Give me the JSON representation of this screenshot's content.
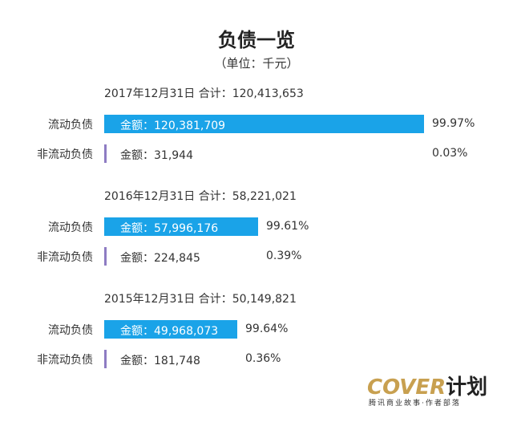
{
  "chart_data": {
    "type": "bar",
    "title": "负债一览",
    "subtitle": "（单位：千元）",
    "label_prefix": "金额：",
    "colors": {
      "current": "#1aa3e8",
      "noncurrent": "#8e7cc3"
    },
    "groups": [
      {
        "header": "2017年12月31日  合计：120,413,653",
        "rows": [
          {
            "name": "流动负债",
            "value": 120381709,
            "value_label": "120,381,709",
            "pct": 99.97,
            "pct_label": "99.97%"
          },
          {
            "name": "非流动负债",
            "value": 31944,
            "value_label": "31,944",
            "pct": 0.03,
            "pct_label": "0.03%"
          }
        ]
      },
      {
        "header": "2016年12月31日  合计：58,221,021",
        "rows": [
          {
            "name": "流动负债",
            "value": 57996176,
            "value_label": "57,996,176",
            "pct": 99.61,
            "pct_label": "99.61%"
          },
          {
            "name": "非流动负债",
            "value": 224845,
            "value_label": "224,845",
            "pct": 0.39,
            "pct_label": "0.39%"
          }
        ]
      },
      {
        "header": "2015年12月31日  合计：50,149,821",
        "rows": [
          {
            "name": "流动负债",
            "value": 49968073,
            "value_label": "49,968,073",
            "pct": 99.64,
            "pct_label": "99.64%"
          },
          {
            "name": "非流动负债",
            "value": 181748,
            "value_label": "181,748",
            "pct": 0.36,
            "pct_label": "0.36%"
          }
        ]
      }
    ]
  },
  "logo": {
    "main": "COVER",
    "main_cn": "计划",
    "sub": "腾讯商业故事·作者部落"
  }
}
